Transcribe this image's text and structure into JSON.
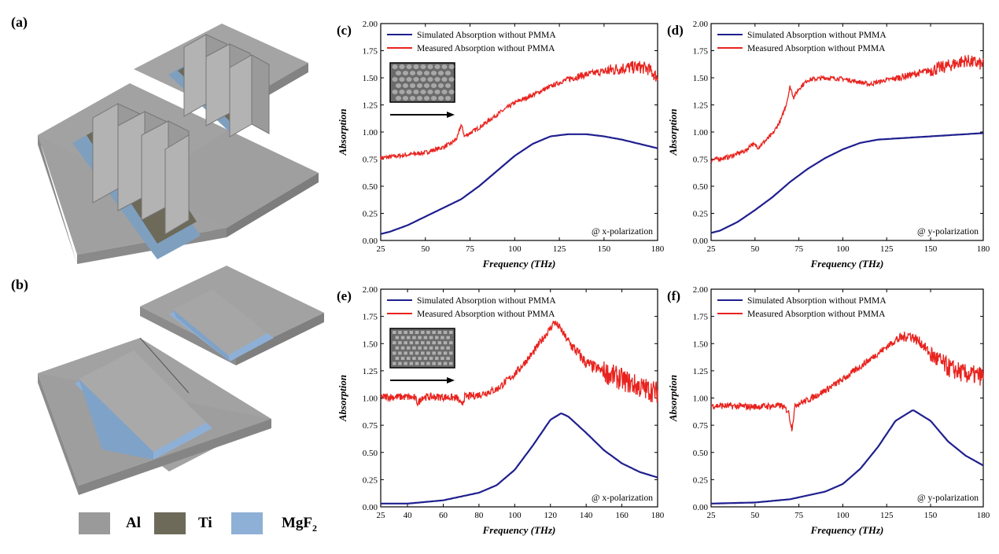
{
  "panels": {
    "a": "(a)",
    "b": "(b)"
  },
  "materials_legend": [
    {
      "label": "Al",
      "color": "#9a9a9a"
    },
    {
      "label": "Ti",
      "color": "#6d6a5a"
    },
    {
      "label": "MgF",
      "sub": "2",
      "color": "#8fb0d6"
    }
  ],
  "chart_data": [
    {
      "id": "c",
      "letter": "(c)",
      "type": "line",
      "xlabel": "Frequency (THz)",
      "ylabel": "Absorption",
      "xlim": [
        25,
        180
      ],
      "ylim": [
        0,
        2
      ],
      "xticks": [
        25,
        50,
        75,
        100,
        125,
        150,
        180
      ],
      "yticks": [
        0,
        0.25,
        0.5,
        0.75,
        1.0,
        1.25,
        1.5,
        1.75,
        2.0
      ],
      "annotation": "@ x-polarization",
      "inset": {
        "pattern": "hex",
        "arrow": "right"
      },
      "series": [
        {
          "name": "Simulated Absorption without PMMA",
          "color": "#1f1f8f",
          "noise": 0,
          "x": [
            25,
            30,
            40,
            50,
            60,
            70,
            80,
            90,
            100,
            110,
            120,
            130,
            140,
            150,
            160,
            170,
            180
          ],
          "y": [
            0.06,
            0.08,
            0.14,
            0.22,
            0.3,
            0.38,
            0.5,
            0.64,
            0.78,
            0.89,
            0.96,
            0.98,
            0.98,
            0.96,
            0.93,
            0.89,
            0.85
          ]
        },
        {
          "name": "Measured Absorption without PMMA",
          "color": "#e8231e",
          "noise": 0.02,
          "x": [
            25,
            30,
            40,
            50,
            60,
            65,
            68,
            70,
            72,
            75,
            80,
            90,
            100,
            110,
            120,
            130,
            140,
            150,
            160,
            170,
            175,
            180
          ],
          "y": [
            0.76,
            0.77,
            0.79,
            0.81,
            0.86,
            0.9,
            0.95,
            1.07,
            0.96,
            0.99,
            1.04,
            1.16,
            1.27,
            1.34,
            1.42,
            1.49,
            1.53,
            1.56,
            1.59,
            1.6,
            1.58,
            1.5
          ]
        }
      ]
    },
    {
      "id": "d",
      "letter": "(d)",
      "type": "line",
      "xlabel": "Frequency (THz)",
      "ylabel": "Absorption",
      "xlim": [
        25,
        180
      ],
      "ylim": [
        0,
        2
      ],
      "xticks": [
        25,
        50,
        75,
        100,
        125,
        150,
        180
      ],
      "yticks": [
        0,
        0.25,
        0.5,
        0.75,
        1.0,
        1.25,
        1.5,
        1.75,
        2.0
      ],
      "annotation": "@ y-polarization",
      "inset": null,
      "series": [
        {
          "name": "Simulated Absorption without PMMA",
          "color": "#1f1f8f",
          "noise": 0,
          "x": [
            25,
            30,
            40,
            50,
            60,
            70,
            80,
            90,
            100,
            110,
            120,
            130,
            140,
            150,
            160,
            170,
            180
          ],
          "y": [
            0.07,
            0.09,
            0.17,
            0.28,
            0.4,
            0.54,
            0.66,
            0.76,
            0.84,
            0.9,
            0.93,
            0.94,
            0.95,
            0.96,
            0.97,
            0.98,
            0.99
          ]
        },
        {
          "name": "Measured Absorption without PMMA",
          "color": "#e8231e",
          "noise": 0.02,
          "x": [
            25,
            35,
            45,
            48,
            52,
            60,
            65,
            68,
            70,
            72,
            75,
            80,
            90,
            100,
            110,
            115,
            125,
            140,
            150,
            160,
            170,
            180
          ],
          "y": [
            0.74,
            0.77,
            0.83,
            0.89,
            0.86,
            0.98,
            1.12,
            1.27,
            1.42,
            1.32,
            1.4,
            1.48,
            1.5,
            1.49,
            1.46,
            1.44,
            1.48,
            1.53,
            1.57,
            1.61,
            1.66,
            1.62
          ]
        }
      ]
    },
    {
      "id": "e",
      "letter": "(e)",
      "type": "line",
      "xlabel": "Frequency (THz)",
      "ylabel": "Absorption",
      "xlim": [
        25,
        180
      ],
      "ylim": [
        0,
        2
      ],
      "xticks": [
        25,
        40,
        60,
        80,
        100,
        120,
        140,
        160,
        180
      ],
      "yticks": [
        0,
        0.25,
        0.5,
        0.75,
        1.0,
        1.25,
        1.5,
        1.75,
        2.0
      ],
      "annotation": "@ x-polarization",
      "inset": {
        "pattern": "square",
        "arrow": "right"
      },
      "series": [
        {
          "name": "Simulated Absorption without PMMA",
          "color": "#1f1f8f",
          "noise": 0,
          "x": [
            25,
            40,
            60,
            80,
            90,
            100,
            110,
            120,
            126,
            130,
            140,
            150,
            160,
            170,
            180
          ],
          "y": [
            0.03,
            0.03,
            0.06,
            0.13,
            0.2,
            0.34,
            0.56,
            0.8,
            0.86,
            0.83,
            0.68,
            0.52,
            0.4,
            0.32,
            0.27
          ]
        },
        {
          "name": "Measured Absorption without PMMA",
          "color": "#e8231e",
          "noise": 0.035,
          "x": [
            25,
            40,
            44,
            46,
            48,
            60,
            68,
            70,
            72,
            80,
            90,
            100,
            110,
            115,
            120,
            122,
            125,
            130,
            140,
            150,
            160,
            170,
            180
          ],
          "y": [
            1.01,
            1.01,
            1.0,
            0.95,
            1.01,
            1.01,
            1.0,
            0.93,
            1.01,
            1.03,
            1.08,
            1.22,
            1.41,
            1.53,
            1.64,
            1.7,
            1.65,
            1.52,
            1.32,
            1.24,
            1.17,
            1.1,
            1.05
          ]
        }
      ]
    },
    {
      "id": "f",
      "letter": "(f)",
      "type": "line",
      "xlabel": "Frequency (THz)",
      "ylabel": "Absorption",
      "xlim": [
        25,
        180
      ],
      "ylim": [
        0,
        2
      ],
      "xticks": [
        25,
        50,
        75,
        100,
        125,
        150,
        180
      ],
      "yticks": [
        0,
        0.25,
        0.5,
        0.75,
        1.0,
        1.25,
        1.5,
        1.75,
        2.0
      ],
      "annotation": "@ y-polarization",
      "inset": null,
      "series": [
        {
          "name": "Simulated Absorption without PMMA",
          "color": "#1f1f8f",
          "noise": 0,
          "x": [
            25,
            50,
            70,
            90,
            100,
            110,
            120,
            130,
            140,
            150,
            160,
            170,
            180
          ],
          "y": [
            0.03,
            0.04,
            0.07,
            0.14,
            0.21,
            0.35,
            0.55,
            0.79,
            0.89,
            0.79,
            0.6,
            0.47,
            0.38
          ]
        },
        {
          "name": "Measured Absorption without PMMA",
          "color": "#e8231e",
          "noise": 0.03,
          "x": [
            25,
            50,
            65,
            69,
            71,
            73,
            80,
            90,
            100,
            110,
            120,
            130,
            138,
            145,
            150,
            160,
            170,
            180
          ],
          "y": [
            0.93,
            0.92,
            0.93,
            0.88,
            0.72,
            0.94,
            0.98,
            1.07,
            1.17,
            1.29,
            1.41,
            1.53,
            1.58,
            1.5,
            1.4,
            1.28,
            1.22,
            1.2
          ]
        }
      ]
    }
  ]
}
